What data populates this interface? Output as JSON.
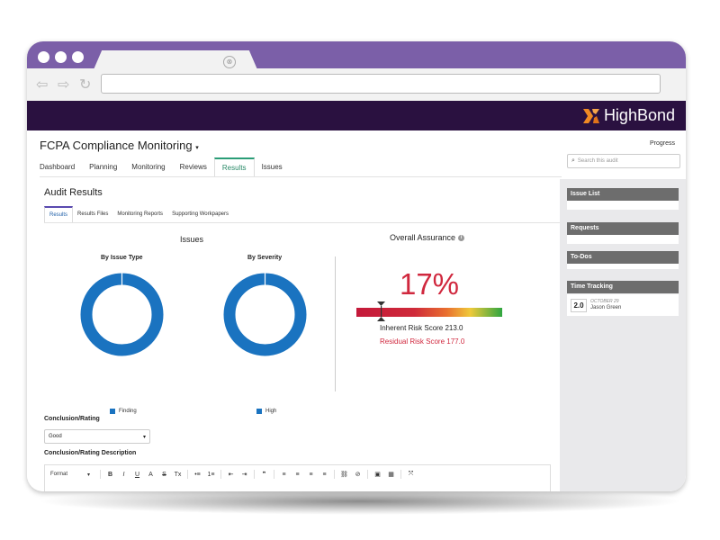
{
  "browser": {
    "tab_close_glyph": "⊗",
    "back_glyph": "⇦",
    "forward_glyph": "⇨",
    "reload_glyph": "↻",
    "address_value": ""
  },
  "brand": {
    "name": "HighBond",
    "logo_color": "#f08a24"
  },
  "header": {
    "project_title": "FCPA Compliance Monitoring",
    "progress_label": "Progress",
    "search_placeholder": "Search this audit"
  },
  "main_tabs": [
    {
      "label": "Dashboard",
      "active": false
    },
    {
      "label": "Planning",
      "active": false
    },
    {
      "label": "Monitoring",
      "active": false
    },
    {
      "label": "Reviews",
      "active": false
    },
    {
      "label": "Results",
      "active": true
    },
    {
      "label": "Issues",
      "active": false
    }
  ],
  "audit_results": {
    "title": "Audit Results",
    "sub_tabs": [
      {
        "label": "Results",
        "active": true
      },
      {
        "label": "Results Files",
        "active": false
      },
      {
        "label": "Monitoring Reports",
        "active": false
      },
      {
        "label": "Supporting Workpapers",
        "active": false
      }
    ]
  },
  "issues": {
    "title": "Issues",
    "charts": [
      {
        "title": "By Issue Type",
        "legend": "Finding"
      },
      {
        "title": "By Severity",
        "legend": "High"
      }
    ]
  },
  "chart_data": [
    {
      "type": "pie",
      "title": "By Issue Type",
      "series": [
        {
          "name": "Finding",
          "values": [
            1
          ]
        }
      ],
      "colors": [
        "#1a73c0"
      ],
      "donut": true
    },
    {
      "type": "pie",
      "title": "By Severity",
      "series": [
        {
          "name": "High",
          "values": [
            1
          ]
        }
      ],
      "colors": [
        "#1a73c0"
      ],
      "donut": true
    }
  ],
  "assurance": {
    "title": "Overall Assurance",
    "percent_label": "17%",
    "percent_value": 0.17,
    "inherent": "Inherent Risk Score 213.0",
    "residual": "Residual Risk Score 177.0",
    "colors": {
      "accent": "#d0283e"
    }
  },
  "conclusion": {
    "rating_label": "Conclusion/Rating",
    "rating_value": "Good",
    "description_label": "Conclusion/Rating Description",
    "toolbar": {
      "format_label": "Format",
      "buttons": [
        "B",
        "I",
        "U",
        "A",
        "S",
        "Tx",
        "•≡",
        "1≡",
        "⇤",
        "⇥",
        "❞",
        "≡",
        "≡",
        "≡",
        "≡",
        "⛓",
        "⊘",
        "▣",
        "▦",
        "⤧"
      ]
    }
  },
  "sidebar": {
    "issue_list": "Issue List",
    "requests": "Requests",
    "todos": "To-Dos",
    "time_tracking": {
      "title": "Time Tracking",
      "hours": "2.0",
      "date": "OCTOBER 29",
      "name": "Jason Green"
    }
  }
}
